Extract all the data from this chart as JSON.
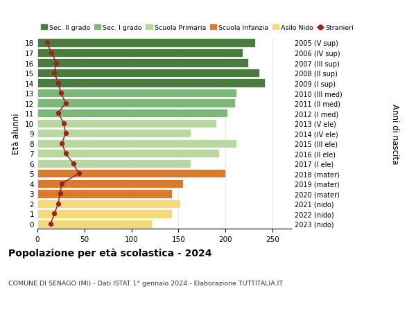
{
  "ages": [
    18,
    17,
    16,
    15,
    14,
    13,
    12,
    11,
    10,
    9,
    8,
    7,
    6,
    5,
    4,
    3,
    2,
    1,
    0
  ],
  "bar_values": [
    232,
    218,
    224,
    236,
    242,
    212,
    210,
    202,
    190,
    163,
    212,
    193,
    163,
    200,
    155,
    143,
    152,
    143,
    122
  ],
  "bar_colors": [
    "#4a7c3f",
    "#4a7c3f",
    "#4a7c3f",
    "#4a7c3f",
    "#4a7c3f",
    "#7db87a",
    "#7db87a",
    "#7db87a",
    "#b8d8a0",
    "#b8d8a0",
    "#b8d8a0",
    "#b8d8a0",
    "#b8d8a0",
    "#d97b2b",
    "#d97b2b",
    "#d97b2b",
    "#f5d97a",
    "#f5d97a",
    "#f5d97a"
  ],
  "stranieri_values": [
    10,
    15,
    20,
    18,
    22,
    25,
    30,
    22,
    28,
    30,
    26,
    30,
    38,
    44,
    26,
    24,
    22,
    18,
    14
  ],
  "right_labels": [
    "2005 (V sup)",
    "2006 (IV sup)",
    "2007 (III sup)",
    "2008 (II sup)",
    "2009 (I sup)",
    "2010 (III med)",
    "2011 (II med)",
    "2012 (I med)",
    "2013 (V ele)",
    "2014 (IV ele)",
    "2015 (III ele)",
    "2016 (II ele)",
    "2017 (I ele)",
    "2018 (mater)",
    "2019 (mater)",
    "2020 (mater)",
    "2021 (nido)",
    "2022 (nido)",
    "2023 (nido)"
  ],
  "legend_labels": [
    "Sec. II grado",
    "Sec. I grado",
    "Scuola Primaria",
    "Scuola Infanzia",
    "Asilo Nido",
    "Stranieri"
  ],
  "legend_colors": [
    "#4a7c3f",
    "#7db87a",
    "#b8d8a0",
    "#d97b2b",
    "#f5d97a",
    "#a02020"
  ],
  "ylabel": "Età alunni",
  "right_ylabel": "Anni di nascita",
  "title": "Popolazione per età scolastica - 2024",
  "subtitle": "COMUNE DI SENAGO (MI) - Dati ISTAT 1° gennaio 2024 - Elaborazione TUTTITALIA.IT",
  "xlim": [
    0,
    270
  ],
  "xticks": [
    0,
    50,
    100,
    150,
    200,
    250
  ],
  "background_color": "#ffffff",
  "grid_color": "#cccccc"
}
